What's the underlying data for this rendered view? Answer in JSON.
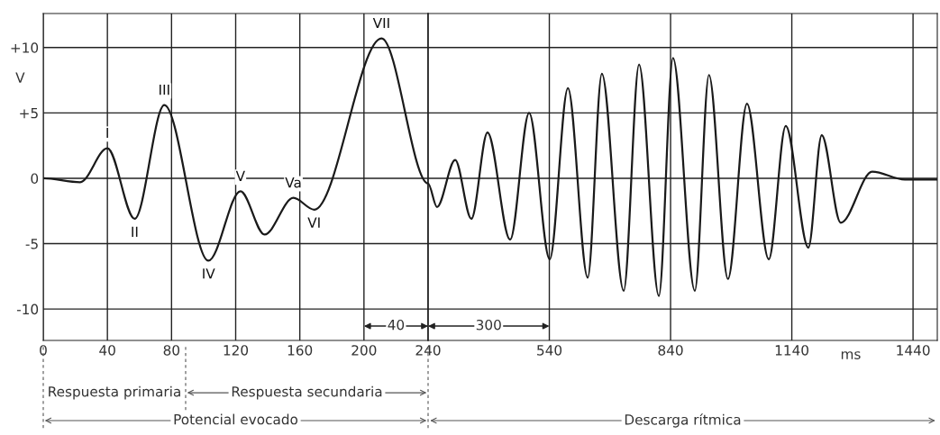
{
  "chart_data": [
    {
      "type": "line",
      "ylabel": "V",
      "xlim": [
        0,
        240
      ],
      "ylim": [
        -12.4,
        12.6
      ],
      "xticks": [
        0,
        40,
        80,
        120,
        160,
        200,
        240
      ],
      "yticks": [
        {
          "value": 10,
          "label": "+10"
        },
        {
          "value": 5,
          "label": "+5"
        },
        0,
        -5,
        -10
      ],
      "grid": true,
      "series": [
        {
          "color": "#1a1a1a",
          "x": [
            0,
            23,
            40,
            57,
            75.5,
            103,
            123,
            138,
            156,
            169,
            211,
            240
          ],
          "values": [
            0,
            -0.3,
            2.3,
            -3.1,
            5.6,
            -6.3,
            -1.0,
            -4.3,
            -1.5,
            -2.4,
            10.7,
            -0.4
          ]
        }
      ],
      "annotations": [
        {
          "text": "I",
          "x": 40,
          "y": 2.3
        },
        {
          "text": "II",
          "x": 57,
          "y": -3.1
        },
        {
          "text": "III",
          "x": 75.5,
          "y": 5.6
        },
        {
          "text": "IV",
          "x": 103,
          "y": -6.3
        },
        {
          "text": "V",
          "x": 123,
          "y": -1.0
        },
        {
          "text": "Va",
          "x": 156,
          "y": -1.5
        },
        {
          "text": "VI",
          "x": 169,
          "y": -2.4
        },
        {
          "text": "VII",
          "x": 211,
          "y": 10.7
        },
        {
          "text": "40",
          "x": 220,
          "y": -11.3
        },
        "Respuesta primaria",
        "Respuesta secundaria",
        "Potencial evocado"
      ]
    },
    {
      "type": "line",
      "xlabel": "ms",
      "xlim": [
        240,
        1500
      ],
      "ylim": [
        -12.4,
        12.6
      ],
      "xticks": [
        {
          "value": 240,
          "label": null
        },
        540,
        840,
        1140,
        1440
      ],
      "yticks": [
        {
          "value": 10,
          "label": null
        },
        {
          "value": 5,
          "label": null
        },
        {
          "value": 0,
          "label": null
        },
        {
          "value": -5,
          "label": null
        },
        {
          "value": -10,
          "label": null
        }
      ],
      "grid": true,
      "tick_labels": "x",
      "series": [
        {
          "color": "#1a1a1a",
          "x": [
            240,
            262,
            307,
            347,
            387,
            443,
            490,
            541,
            586,
            635,
            670,
            724,
            762,
            811,
            846,
            900,
            935,
            982,
            1029,
            1083,
            1125,
            1181,
            1214,
            1261,
            1339,
            1420,
            1500
          ],
          "values": [
            -0.4,
            -2.2,
            1.4,
            -3.1,
            3.5,
            -4.7,
            5.0,
            -6.2,
            6.9,
            -7.6,
            8.0,
            -8.6,
            8.7,
            -9.0,
            9.2,
            -8.6,
            7.9,
            -7.7,
            5.7,
            -6.2,
            4.0,
            -5.3,
            3.3,
            -3.4,
            0.5,
            -0.1,
            -0.1
          ]
        }
      ],
      "annotations": [
        {
          "text": "300",
          "x": 390,
          "y": -11.3
        },
        "Descarga rítmica"
      ]
    }
  ]
}
